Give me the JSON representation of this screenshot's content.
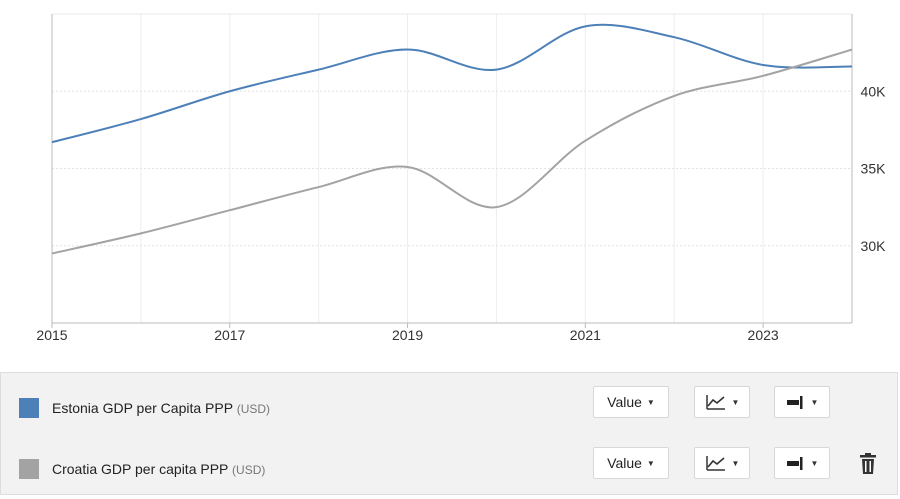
{
  "chart_data": {
    "type": "line",
    "x_ticks": [
      "2015",
      "2017",
      "2019",
      "2021",
      "2023"
    ],
    "y_ticks": [
      "30K",
      "35K",
      "40K"
    ],
    "y_tick_values": [
      30000,
      35000,
      40000
    ],
    "xlim": [
      2015,
      2024
    ],
    "ylim": [
      25000,
      45000
    ],
    "grid": true,
    "y_axis_side": "right",
    "series": [
      {
        "name": "Estonia GDP per Capita PPP",
        "unit": "(USD)",
        "color": "#4e80b8",
        "x": [
          2015,
          2016,
          2017,
          2018,
          2019,
          2020,
          2021,
          2022,
          2023,
          2024
        ],
        "values": [
          36700,
          38200,
          40000,
          41400,
          42700,
          41400,
          44200,
          43500,
          41700,
          41600
        ]
      },
      {
        "name": "Croatia GDP per capita PPP",
        "unit": "(USD)",
        "color": "#a3a3a3",
        "x": [
          2015,
          2016,
          2017,
          2018,
          2019,
          2020,
          2021,
          2022,
          2023,
          2024
        ],
        "values": [
          29500,
          30800,
          32300,
          33800,
          35100,
          32500,
          36800,
          39700,
          41000,
          42700
        ]
      }
    ]
  },
  "legend": {
    "rows": [
      {
        "label": "Estonia GDP per Capita PPP",
        "unit": "(USD)",
        "color": "#4e80b8",
        "value_label": "Value",
        "chart_type_icon": "line-chart-icon",
        "axis_icon": "axis-right-icon"
      },
      {
        "label": "Croatia GDP per capita PPP",
        "unit": "(USD)",
        "color": "#a3a3a3",
        "value_label": "Value",
        "chart_type_icon": "line-chart-icon",
        "axis_icon": "axis-right-icon",
        "delete_icon": "trash-icon"
      }
    ]
  }
}
